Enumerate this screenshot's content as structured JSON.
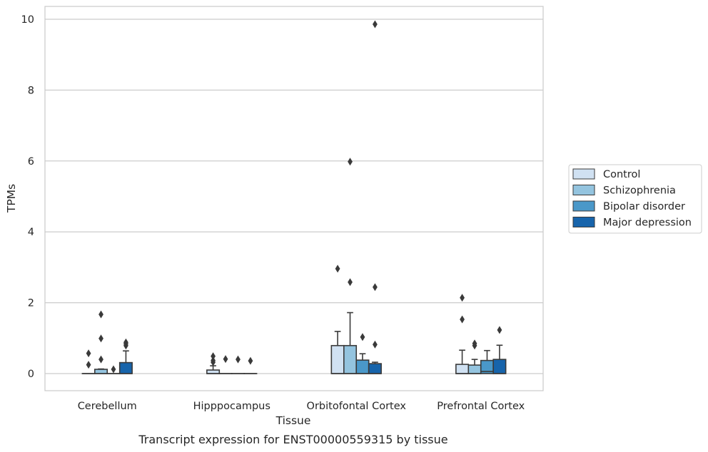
{
  "chart_data": {
    "type": "box",
    "caption": "Transcript expression for ENST00000559315 by tissue",
    "xlabel": "Tissue",
    "ylabel": "TPMs",
    "ylim": [
      -0.45,
      10.35
    ],
    "yticks": [
      0,
      2,
      4,
      6,
      8,
      10
    ],
    "grid": true,
    "legend_position": "right",
    "categories": [
      "Cerebellum",
      "Hipppocampus",
      "Orbitofontal Cortex",
      "Prefrontal Cortex"
    ],
    "series": [
      {
        "name": "Control",
        "color": "#d0e1f2",
        "boxes": [
          {
            "q1": 0,
            "median": 0,
            "q3": 0,
            "whisker_low": 0,
            "whisker_high": 0,
            "outliers": [
              0.25,
              0.57
            ]
          },
          {
            "q1": 0,
            "median": 0,
            "q3": 0.1,
            "whisker_low": 0,
            "whisker_high": 0.22,
            "outliers": [
              0.32,
              0.37,
              0.49
            ]
          },
          {
            "q1": 0,
            "median": 0,
            "q3": 0.79,
            "whisker_low": 0,
            "whisker_high": 1.19,
            "outliers": [
              2.96
            ]
          },
          {
            "q1": 0,
            "median": 0,
            "q3": 0.26,
            "whisker_low": 0,
            "whisker_high": 0.66,
            "outliers": [
              1.53,
              2.14
            ]
          }
        ]
      },
      {
        "name": "Schizophrenia",
        "color": "#94c4df",
        "boxes": [
          {
            "q1": 0,
            "median": 0,
            "q3": 0.12,
            "whisker_low": 0,
            "whisker_high": 0.13,
            "outliers": [
              0.4,
              0.99,
              1.67
            ]
          },
          {
            "q1": 0,
            "median": 0,
            "q3": 0,
            "whisker_low": 0,
            "whisker_high": 0,
            "outliers": [
              0.41
            ]
          },
          {
            "q1": 0,
            "median": 0,
            "q3": 0.79,
            "whisker_low": 0,
            "whisker_high": 1.72,
            "outliers": [
              2.58,
              5.98
            ]
          },
          {
            "q1": 0,
            "median": 0,
            "q3": 0.24,
            "whisker_low": 0,
            "whisker_high": 0.4,
            "outliers": [
              0.79,
              0.85
            ]
          }
        ]
      },
      {
        "name": "Bipolar disorder",
        "color": "#4a98c9",
        "boxes": [
          {
            "q1": 0,
            "median": 0,
            "q3": 0,
            "whisker_low": 0,
            "whisker_high": 0,
            "outliers": [
              0.12
            ]
          },
          {
            "q1": 0,
            "median": 0,
            "q3": 0,
            "whisker_low": 0,
            "whisker_high": 0,
            "outliers": [
              0.4
            ]
          },
          {
            "q1": 0,
            "median": 0,
            "q3": 0.38,
            "whisker_low": 0,
            "whisker_high": 0.56,
            "outliers": [
              1.03
            ]
          },
          {
            "q1": 0,
            "median": 0.06,
            "q3": 0.37,
            "whisker_low": 0,
            "whisker_high": 0.65,
            "outliers": []
          }
        ]
      },
      {
        "name": "Major depression",
        "color": "#1764ab",
        "boxes": [
          {
            "q1": 0,
            "median": 0,
            "q3": 0.31,
            "whisker_low": 0,
            "whisker_high": 0.64,
            "outliers": [
              0.79,
              0.84,
              0.88
            ]
          },
          {
            "q1": 0,
            "median": 0,
            "q3": 0,
            "whisker_low": 0,
            "whisker_high": 0,
            "outliers": [
              0.36
            ]
          },
          {
            "q1": 0,
            "median": 0,
            "q3": 0.28,
            "whisker_low": 0,
            "whisker_high": 0.32,
            "outliers": [
              0.82,
              2.44,
              9.86
            ]
          },
          {
            "q1": 0,
            "median": 0,
            "q3": 0.4,
            "whisker_low": 0,
            "whisker_high": 0.8,
            "outliers": [
              1.23
            ]
          }
        ]
      }
    ]
  }
}
